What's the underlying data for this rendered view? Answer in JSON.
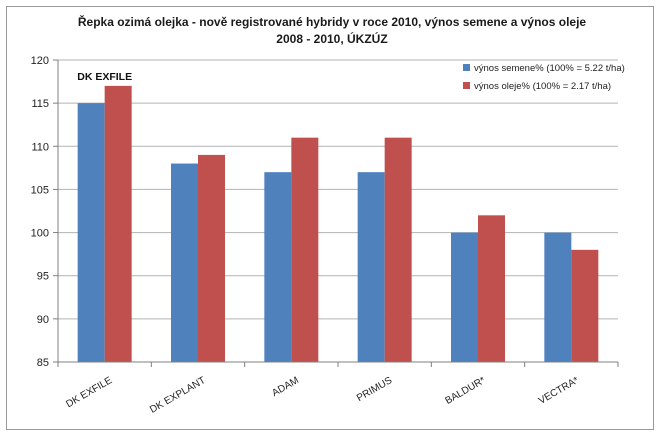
{
  "chart_data": {
    "type": "bar",
    "title_line1": "Řepka ozimá olejka - nově registrované hybridy v roce 2010, výnos semene a výnos oleje",
    "title_line2": "2008 - 2010, ÚKZÚZ",
    "categories": [
      "DK EXFILE",
      "DK EXPLANT",
      "ADAM",
      "PRIMUS",
      "BALDUR*",
      "VECTRA*"
    ],
    "series": [
      {
        "name": "výnos semene% (100% = 5.22 t/ha)",
        "color": "#4f81bd",
        "values": [
          115,
          108,
          107,
          107,
          100,
          100
        ]
      },
      {
        "name": "výnos oleje% (100% = 2.17 t/ha)",
        "color": "#c0504d",
        "values": [
          117,
          109,
          111,
          111,
          102,
          98
        ]
      }
    ],
    "ylim": [
      85,
      120
    ],
    "yticks": [
      85,
      90,
      95,
      100,
      105,
      110,
      115,
      120
    ],
    "grid": true,
    "legend_position": "top-right",
    "annotation": "DK EXFILE"
  }
}
